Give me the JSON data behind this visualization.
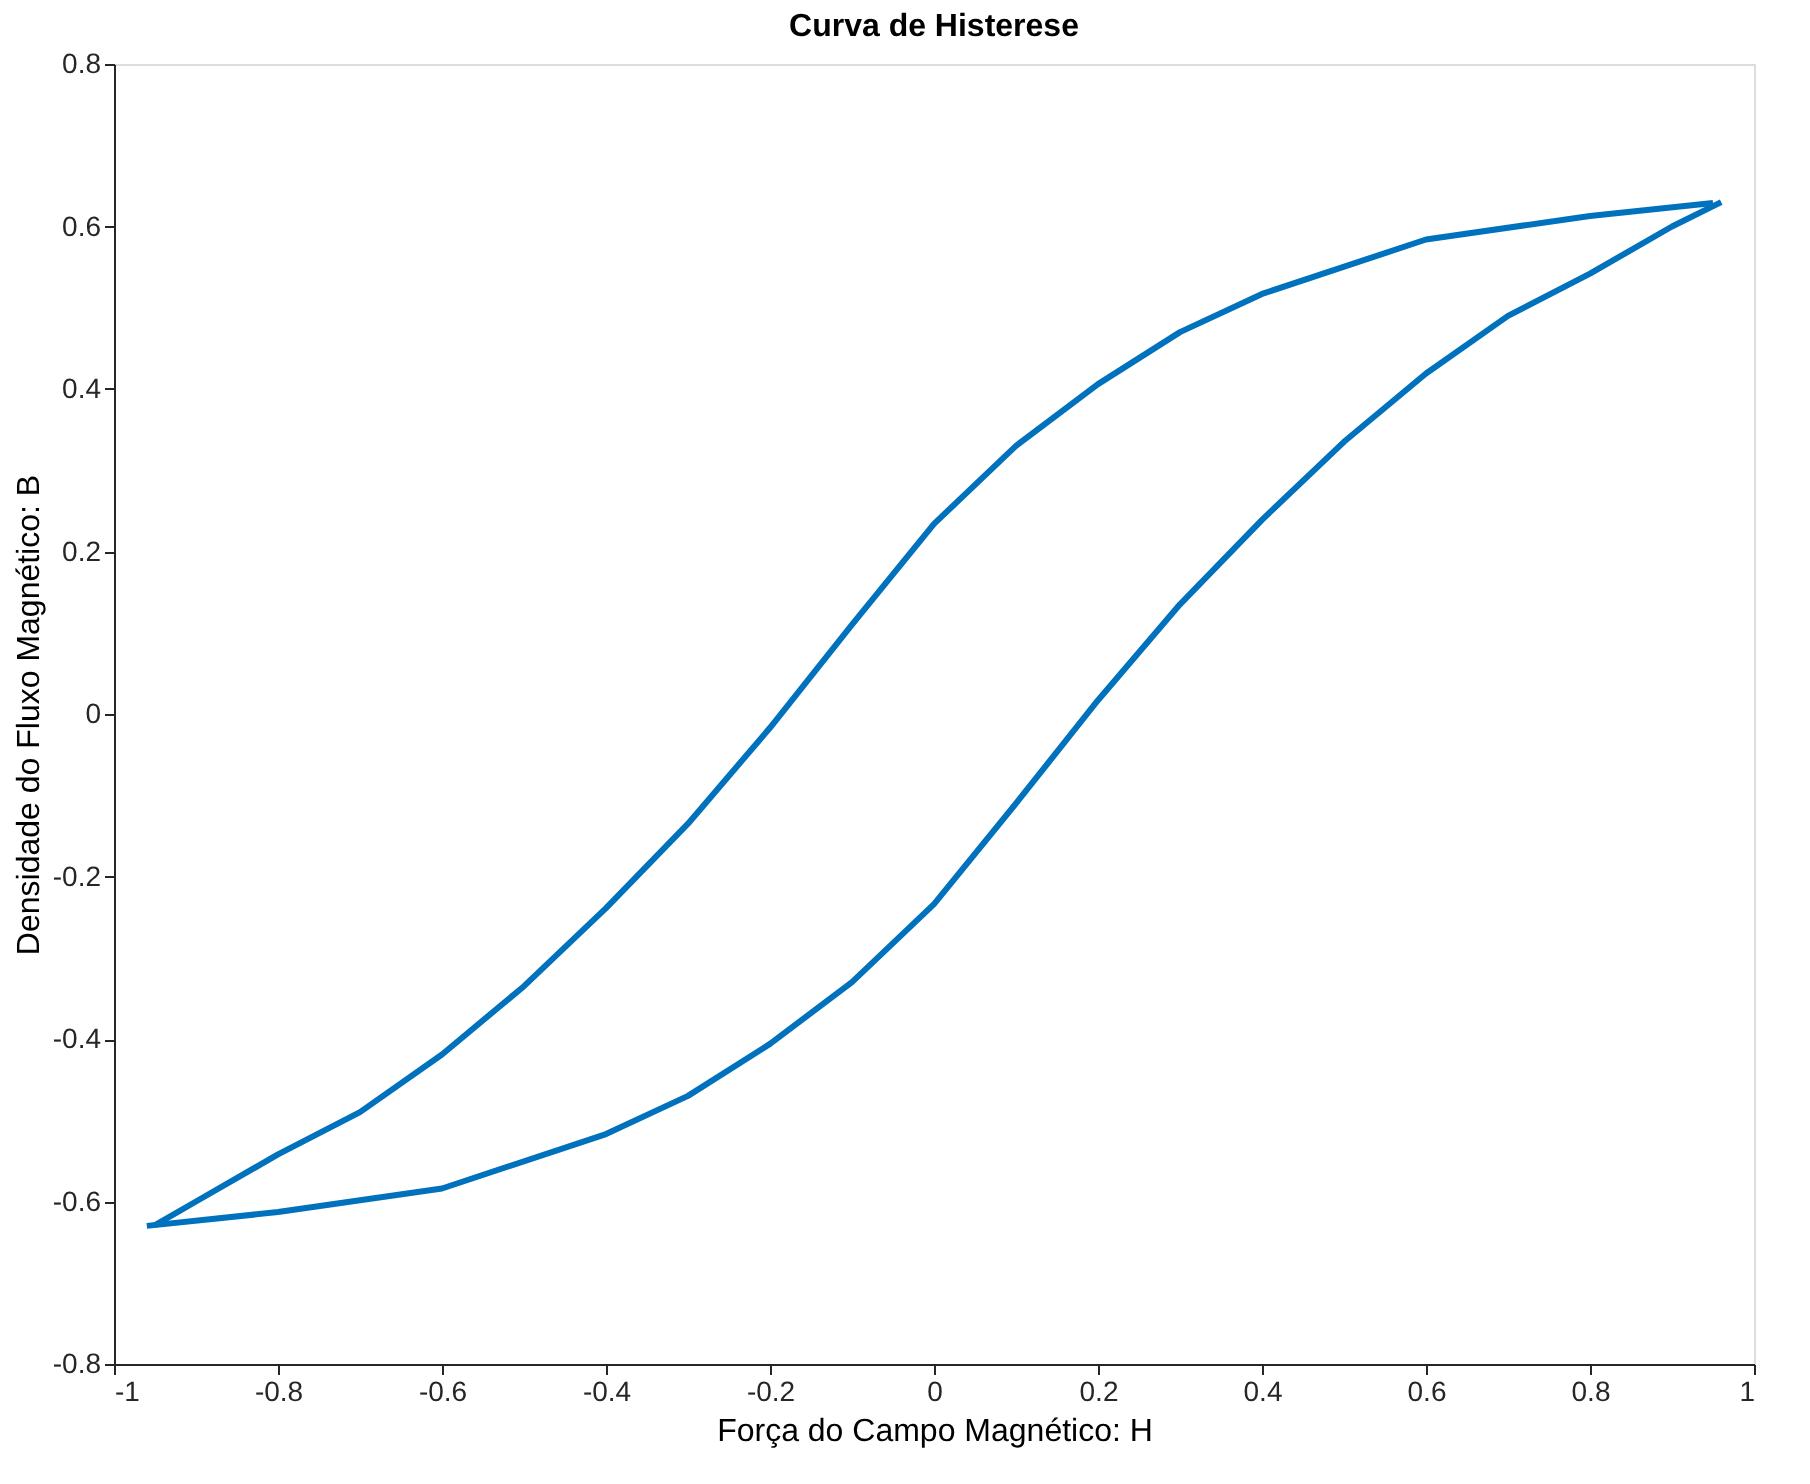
{
  "chart_data": {
    "type": "line",
    "title": "Curva de Histerese",
    "xlabel": "Força do Campo Magnético: H",
    "ylabel": "Densidade do Fluxo Magnético: B",
    "series": [
      {
        "color": "#0072bd",
        "x": [
          -0.96,
          -0.8,
          -0.6,
          -0.4,
          -0.3,
          -0.2,
          -0.1,
          0,
          0.1,
          0.2,
          0.3,
          0.4,
          0.5,
          0.6,
          0.7,
          0.8,
          0.9,
          0.96
        ],
        "values": [
          -0.63,
          -0.613,
          -0.584,
          -0.517,
          -0.47,
          -0.406,
          -0.33,
          -0.234,
          -0.11,
          0.017,
          0.135,
          0.239,
          0.335,
          0.419,
          0.49,
          0.542,
          0.6,
          0.63
        ]
      },
      {
        "color": "#0072bd",
        "x": [
          0.95,
          0.8,
          0.6,
          0.4,
          0.3,
          0.2,
          0.1,
          0,
          -0.1,
          -0.2,
          -0.3,
          -0.4,
          -0.5,
          -0.6,
          -0.7,
          -0.8,
          -0.9,
          -0.95
        ],
        "values": [
          0.629,
          0.613,
          0.584,
          0.517,
          0.47,
          0.406,
          0.33,
          0.234,
          0.11,
          -0.017,
          -0.135,
          -0.239,
          -0.335,
          -0.419,
          -0.49,
          -0.542,
          -0.6,
          -0.629
        ]
      }
    ],
    "xlim": [
      -1,
      1
    ],
    "xticks": [
      -1,
      -0.8,
      -0.6,
      -0.4,
      -0.2,
      0,
      0.2,
      0.4,
      0.6,
      0.8,
      1
    ],
    "ylim": [
      -0.8,
      0.8
    ],
    "yticks": [
      -0.8,
      -0.6,
      -0.4,
      -0.2,
      0,
      0.2,
      0.4,
      0.6,
      0.8
    ],
    "grid": false,
    "legend": false,
    "marker": "none",
    "line_style": "solid"
  }
}
